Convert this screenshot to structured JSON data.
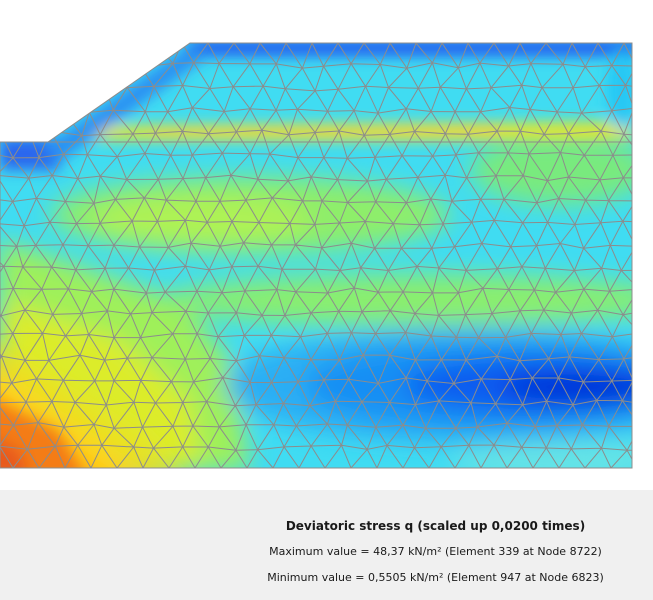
{
  "result": {
    "title": "Deviatoric stress q (scaled up 0,0200 times)",
    "maximum": "Maximum value = 48,37 kN/m² (Element 339 at Node 8722)",
    "minimum": "Minimum value = 0,5505 kN/m² (Element 947 at Node 6823)"
  },
  "colors": {
    "mesh_lines": "#8c8c8c",
    "legend_background": "#f0f0f0",
    "scale": [
      "#0000cc",
      "#0a46ee",
      "#1a8cf2",
      "#2ed4f4",
      "#55e8e0",
      "#9ff05a",
      "#dcec2a",
      "#ffd21a",
      "#ff9f10",
      "#f0641a"
    ]
  }
}
